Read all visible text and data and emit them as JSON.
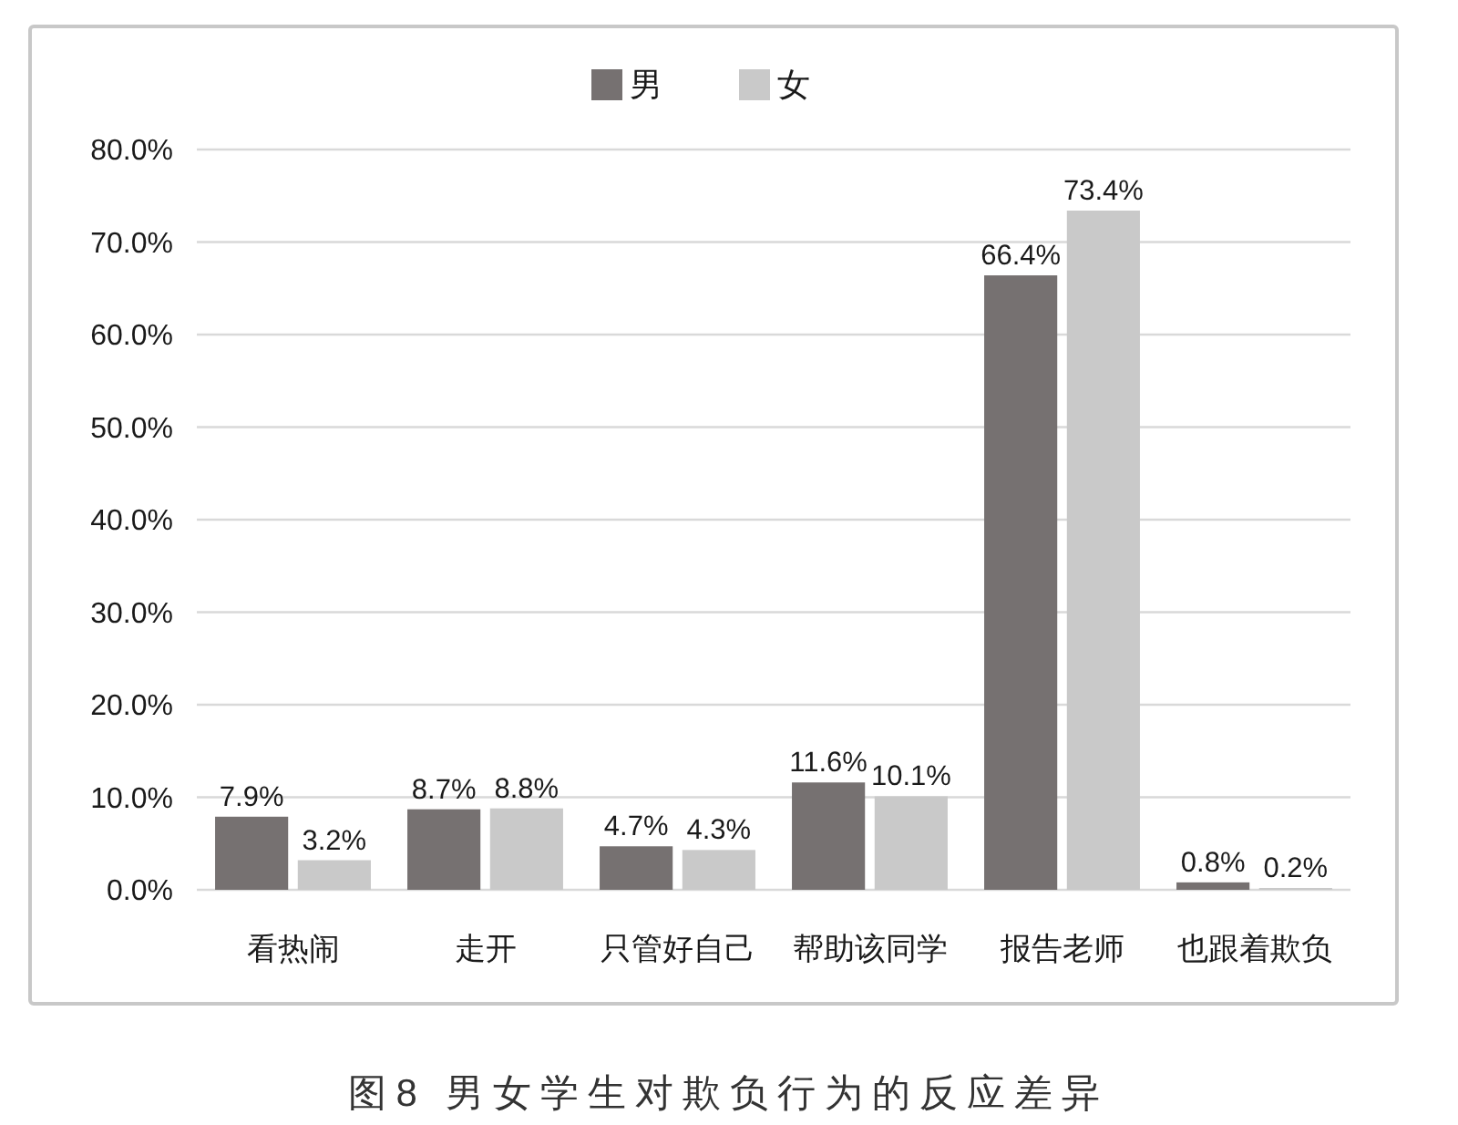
{
  "chart_data": {
    "type": "bar",
    "title": "图8 男女学生对欺负行为的反应差异",
    "categories": [
      "看热闹",
      "走开",
      "只管好自己",
      "帮助该同学",
      "报告老师",
      "也跟着欺负"
    ],
    "series": [
      {
        "name": "男",
        "color": "#767171",
        "values": [
          7.9,
          8.7,
          4.7,
          11.6,
          66.4,
          0.8
        ],
        "value_labels": [
          "7.9%",
          "8.7%",
          "4.7%",
          "11.6%",
          "66.4%",
          "0.8%"
        ]
      },
      {
        "name": "女",
        "color": "#c9c9c9",
        "values": [
          3.2,
          8.8,
          4.3,
          10.1,
          73.4,
          0.2
        ],
        "value_labels": [
          "3.2%",
          "8.8%",
          "4.3%",
          "10.1%",
          "73.4%",
          "0.2%"
        ]
      }
    ],
    "ylim": [
      0,
      80
    ],
    "yticks": [
      {
        "value": 0,
        "label": "0.0%"
      },
      {
        "value": 10,
        "label": "10.0%"
      },
      {
        "value": 20,
        "label": "20.0%"
      },
      {
        "value": 30,
        "label": "30.0%"
      },
      {
        "value": 40,
        "label": "40.0%"
      },
      {
        "value": 50,
        "label": "50.0%"
      },
      {
        "value": 60,
        "label": "60.0%"
      },
      {
        "value": 70,
        "label": "70.0%"
      },
      {
        "value": 80,
        "label": "80.0%"
      }
    ],
    "grid": "y",
    "legend": "top"
  }
}
